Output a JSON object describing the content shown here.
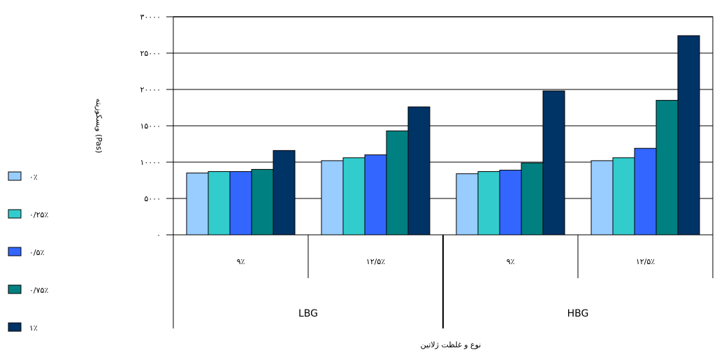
{
  "chart_data": {
    "type": "bar",
    "categories": [
      "۹٪",
      "۱۲/۵٪",
      "۹٪",
      "۱۲/۵٪"
    ],
    "groups": [
      {
        "label": "LBG",
        "categories": [
          0,
          1
        ]
      },
      {
        "label": "HBG",
        "categories": [
          2,
          3
        ]
      }
    ],
    "series": [
      {
        "name": "۰٪",
        "color": "#99ccff",
        "values": [
          8500,
          10200,
          8400,
          10200
        ]
      },
      {
        "name": "۰/۲۵٪",
        "color": "#33cccc",
        "values": [
          8700,
          10600,
          8700,
          10600
        ]
      },
      {
        "name": "۰/۵٪",
        "color": "#3366ff",
        "values": [
          8700,
          11000,
          8900,
          11900
        ]
      },
      {
        "name": "۰/۷۵٪",
        "color": "#008080",
        "values": [
          9000,
          14300,
          9900,
          18500
        ]
      },
      {
        "name": "۱٪",
        "color": "#003366",
        "values": [
          11600,
          17600,
          19800,
          27400
        ]
      }
    ],
    "ylim": [
      0,
      30000
    ],
    "yticks": [
      0,
      5000,
      10000,
      15000,
      20000,
      25000,
      30000
    ],
    "ytick_labels": [
      "۰",
      "۵۰۰۰",
      "۱۰۰۰۰",
      "۱۵۰۰۰",
      "۲۰۰۰۰",
      "۲۵۰۰۰",
      "۳۰۰۰۰"
    ],
    "ylabel": "ویسکوزیته (Pas)",
    "xlabel": "نوع و غلظت ژلاتین",
    "grid": true,
    "legend_position": "left"
  }
}
